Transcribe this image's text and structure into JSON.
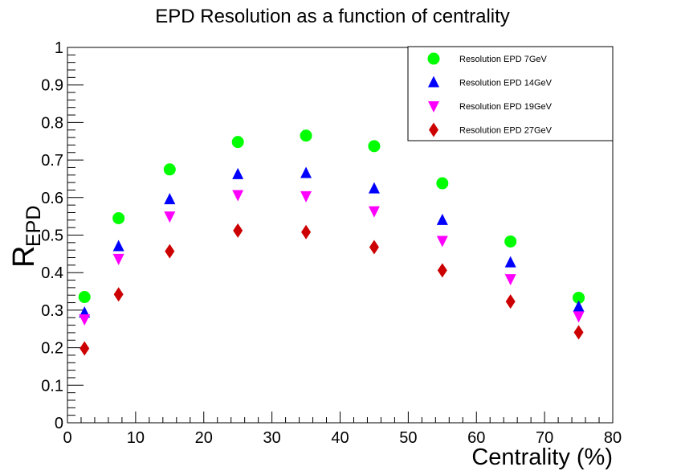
{
  "chart_data": {
    "type": "scatter",
    "title": "EPD Resolution as a function of centrality",
    "xlabel": "Centrality (%)",
    "ylabel": {
      "main": "R",
      "sub": "EPD"
    },
    "xlim": [
      0,
      80
    ],
    "ylim": [
      0,
      1
    ],
    "x_ticks": [
      "0",
      "10",
      "20",
      "30",
      "40",
      "50",
      "60",
      "70",
      "80"
    ],
    "y_ticks": [
      "0",
      "0.1",
      "0.2",
      "0.3",
      "0.4",
      "0.5",
      "0.6",
      "0.7",
      "0.8",
      "0.9",
      "1"
    ],
    "grid": false,
    "legend_position": "top-right",
    "x": [
      2.5,
      7.5,
      15,
      25,
      35,
      45,
      55,
      65,
      75
    ],
    "series": [
      {
        "name": "Resolution EPD 7GeV",
        "marker": "circle",
        "color": "#00ff00",
        "values": [
          0.335,
          0.545,
          0.675,
          0.748,
          0.765,
          0.737,
          0.638,
          0.483,
          0.333
        ]
      },
      {
        "name": "Resolution EPD 14GeV",
        "marker": "triangle-up",
        "color": "#0000ff",
        "values": [
          0.293,
          0.47,
          0.595,
          0.662,
          0.665,
          0.624,
          0.54,
          0.427,
          0.309
        ]
      },
      {
        "name": "Resolution EPD 19GeV",
        "marker": "triangle-down",
        "color": "#ff00ff",
        "values": [
          0.276,
          0.437,
          0.55,
          0.607,
          0.604,
          0.564,
          0.485,
          0.383,
          0.284
        ]
      },
      {
        "name": "Resolution EPD 27GeV",
        "marker": "diamond",
        "color": "#cc0000",
        "values": [
          0.198,
          0.342,
          0.457,
          0.512,
          0.508,
          0.468,
          0.406,
          0.323,
          0.241
        ]
      }
    ]
  }
}
